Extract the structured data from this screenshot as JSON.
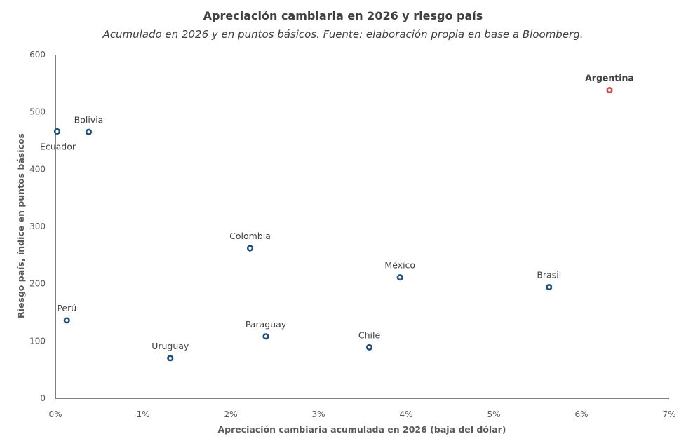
{
  "chart_data": {
    "type": "scatter",
    "title": "Apreciación cambiaria  en 2026 y riesgo país",
    "subtitle": "Acumulado en 2026 y en puntos básicos. Fuente: elaboración propia en base a Bloomberg.",
    "xlabel": "Apreciación cambiaria acumulada en 2026 (baja del dólar)",
    "ylabel": "Riesgo país, índice en puntos básicos",
    "xlim": [
      0,
      7
    ],
    "ylim": [
      0,
      600
    ],
    "x_ticks": [
      0,
      1,
      2,
      3,
      4,
      5,
      6,
      7
    ],
    "x_tick_labels": [
      "0%",
      "1%",
      "2%",
      "3%",
      "4%",
      "5%",
      "6%",
      "7%"
    ],
    "y_ticks": [
      0,
      100,
      200,
      300,
      400,
      500,
      600
    ],
    "y_tick_labels": [
      "0",
      "100",
      "200",
      "300",
      "400",
      "500",
      "600"
    ],
    "grid": false,
    "legend": "none",
    "points": [
      {
        "name": "Ecuador",
        "x": 0.02,
        "y": 466,
        "color": "#1f4e79",
        "label_pos": "below-right",
        "bold": false
      },
      {
        "name": "Bolivia",
        "x": 0.38,
        "y": 465,
        "color": "#1f4e79",
        "label_pos": "above",
        "bold": false
      },
      {
        "name": "Perú",
        "x": 0.13,
        "y": 136,
        "color": "#1f4e79",
        "label_pos": "above",
        "bold": false
      },
      {
        "name": "Uruguay",
        "x": 1.31,
        "y": 70,
        "color": "#1f4e79",
        "label_pos": "above",
        "bold": false
      },
      {
        "name": "Colombia",
        "x": 2.22,
        "y": 262,
        "color": "#1f4e79",
        "label_pos": "above",
        "bold": false
      },
      {
        "name": "Paraguay",
        "x": 2.4,
        "y": 108,
        "color": "#1f4e79",
        "label_pos": "above",
        "bold": false
      },
      {
        "name": "Chile",
        "x": 3.58,
        "y": 89,
        "color": "#1f4e79",
        "label_pos": "above",
        "bold": false
      },
      {
        "name": "México",
        "x": 3.93,
        "y": 211,
        "color": "#1f4e79",
        "label_pos": "above",
        "bold": false
      },
      {
        "name": "Brasil",
        "x": 5.63,
        "y": 194,
        "color": "#1f4e79",
        "label_pos": "above",
        "bold": false
      },
      {
        "name": "Argentina",
        "x": 6.32,
        "y": 538,
        "color": "#c0504d",
        "label_pos": "above",
        "bold": true
      }
    ]
  }
}
